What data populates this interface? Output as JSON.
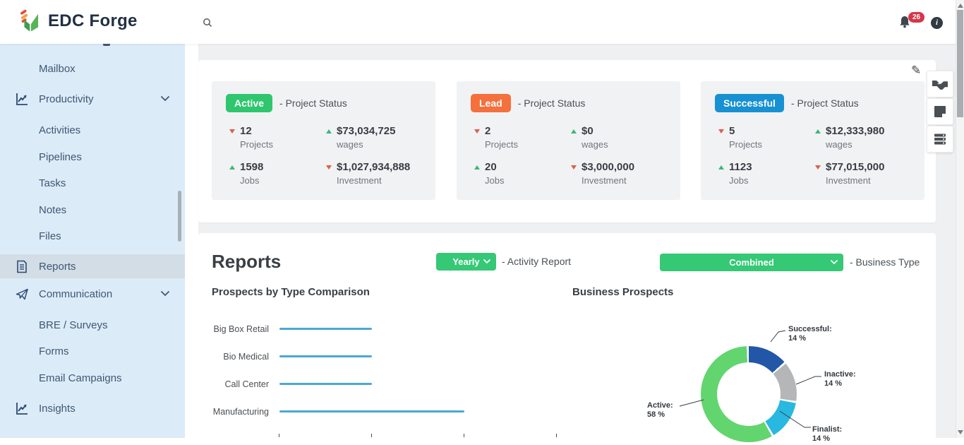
{
  "topbar": {
    "brand": "EDC Forge",
    "notification_count": "26",
    "info_label": "i"
  },
  "sidebar": {
    "items": [
      {
        "label": "Mailbox"
      },
      {
        "label": "Productivity"
      },
      {
        "label": "Activities"
      },
      {
        "label": "Pipelines"
      },
      {
        "label": "Tasks"
      },
      {
        "label": "Notes"
      },
      {
        "label": "Files"
      },
      {
        "label": "Reports"
      },
      {
        "label": "Communication"
      },
      {
        "label": "BRE / Surveys"
      },
      {
        "label": "Forms"
      },
      {
        "label": "Email Campaigns"
      },
      {
        "label": "Insights"
      }
    ]
  },
  "status_cards": [
    {
      "badge": "Active",
      "badge_color": "#2fc66e",
      "suffix": "- Project Status",
      "stats": [
        {
          "trend": "down",
          "value": "12",
          "label": "Projects"
        },
        {
          "trend": "up",
          "value": "$73,034,725",
          "label": "wages"
        },
        {
          "trend": "up",
          "value": "1598",
          "label": "Jobs"
        },
        {
          "trend": "down",
          "value": "$1,027,934,888",
          "label": "Investment"
        }
      ]
    },
    {
      "badge": "Lead",
      "badge_color": "#f4703c",
      "suffix": "- Project Status",
      "stats": [
        {
          "trend": "down",
          "value": "2",
          "label": "Projects"
        },
        {
          "trend": "up",
          "value": "$0",
          "label": "wages"
        },
        {
          "trend": "up",
          "value": "20",
          "label": "Jobs"
        },
        {
          "trend": "down",
          "value": "$3,000,000",
          "label": "Investment"
        }
      ]
    },
    {
      "badge": "Successful",
      "badge_color": "#1791d2",
      "suffix": "- Project Status",
      "stats": [
        {
          "trend": "down",
          "value": "5",
          "label": "Projects"
        },
        {
          "trend": "up",
          "value": "$12,333,980",
          "label": "wages"
        },
        {
          "trend": "up",
          "value": "1123",
          "label": "Jobs"
        },
        {
          "trend": "down",
          "value": "$77,015,000",
          "label": "Investment"
        }
      ]
    }
  ],
  "reports": {
    "title": "Reports",
    "activity_select": "Yearly",
    "activity_suffix": "- Activity Report",
    "business_select": "Combined",
    "business_suffix": "- Business Type",
    "select_color": "#35c875"
  },
  "chart_data": [
    {
      "type": "bar",
      "orientation": "horizontal",
      "title": "Prospects by Type Comparison",
      "categories": [
        "Big Box Retail",
        "Bio Medical",
        "Call Center",
        "Manufacturing"
      ],
      "values": [
        1,
        1,
        1,
        2
      ],
      "xlim": [
        0,
        3
      ],
      "bar_color": "#4ea7d2",
      "note": "axis tick labels cut off at bottom of viewport"
    },
    {
      "type": "pie",
      "subtype": "donut",
      "title": "Business Prospects",
      "legend_position": "callout-labels",
      "slices": [
        {
          "label": "Successful",
          "value": 14,
          "display": "14 %",
          "color": "#2257a8"
        },
        {
          "label": "Inactive",
          "value": 14,
          "display": "14 %",
          "color": "#b4b6b8"
        },
        {
          "label": "Finalist",
          "value": 14,
          "display": "14 %",
          "color": "#28b8e0"
        },
        {
          "label": "Active",
          "value": 58,
          "display": "58 %",
          "color": "#62d56f"
        }
      ]
    }
  ]
}
